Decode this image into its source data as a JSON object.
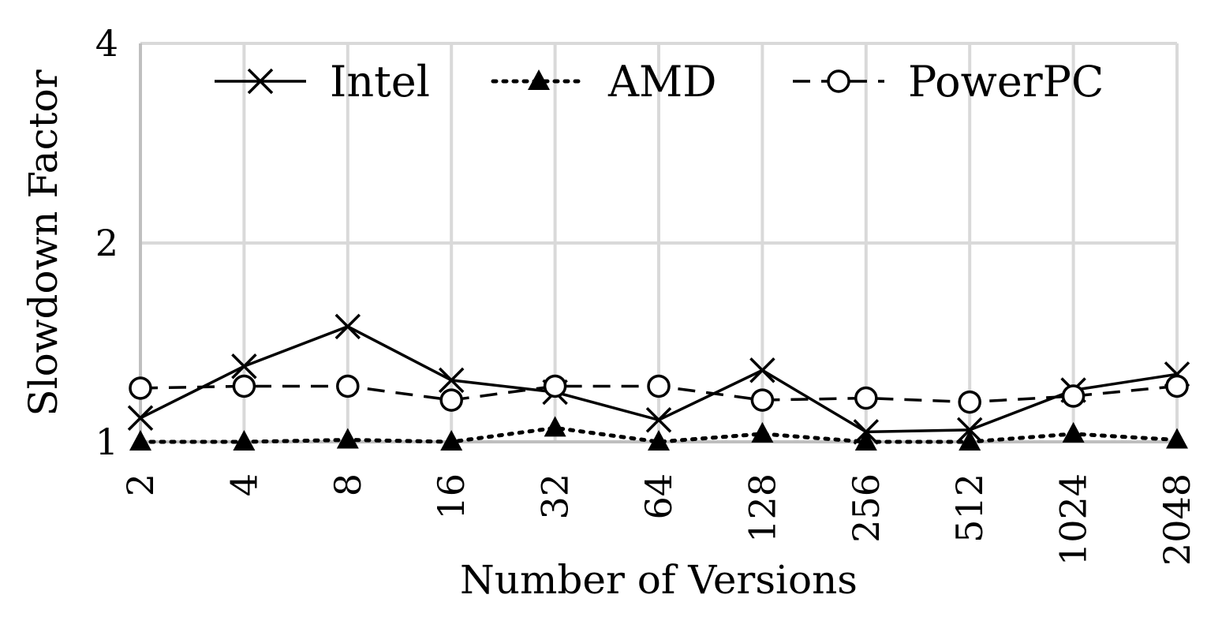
{
  "chart_data": {
    "type": "line",
    "title": "",
    "xlabel": "Number of Versions",
    "ylabel": "Slowdown Factor",
    "categories": [
      "2",
      "4",
      "8",
      "16",
      "32",
      "64",
      "128",
      "256",
      "512",
      "1024",
      "2048"
    ],
    "y_ticks": [
      "1",
      "2",
      "4"
    ],
    "y_tick_values": [
      1,
      2,
      4
    ],
    "ylim": [
      1,
      4
    ],
    "grid": true,
    "legend_position": "top",
    "series": [
      {
        "name": "Intel",
        "marker": "x",
        "line_style": "solid",
        "color": "#000000",
        "values": [
          1.12,
          1.38,
          1.58,
          1.31,
          1.25,
          1.11,
          1.36,
          1.05,
          1.06,
          1.26,
          1.34
        ]
      },
      {
        "name": "AMD",
        "marker": "triangle",
        "line_style": "dotted",
        "color": "#000000",
        "values": [
          1.0,
          1.0,
          1.01,
          1.0,
          1.07,
          1.0,
          1.04,
          1.0,
          1.0,
          1.04,
          1.01
        ]
      },
      {
        "name": "PowerPC",
        "marker": "circle",
        "line_style": "dashed",
        "color": "#000000",
        "values": [
          1.27,
          1.28,
          1.28,
          1.21,
          1.28,
          1.28,
          1.21,
          1.22,
          1.2,
          1.23,
          1.28
        ]
      }
    ]
  }
}
